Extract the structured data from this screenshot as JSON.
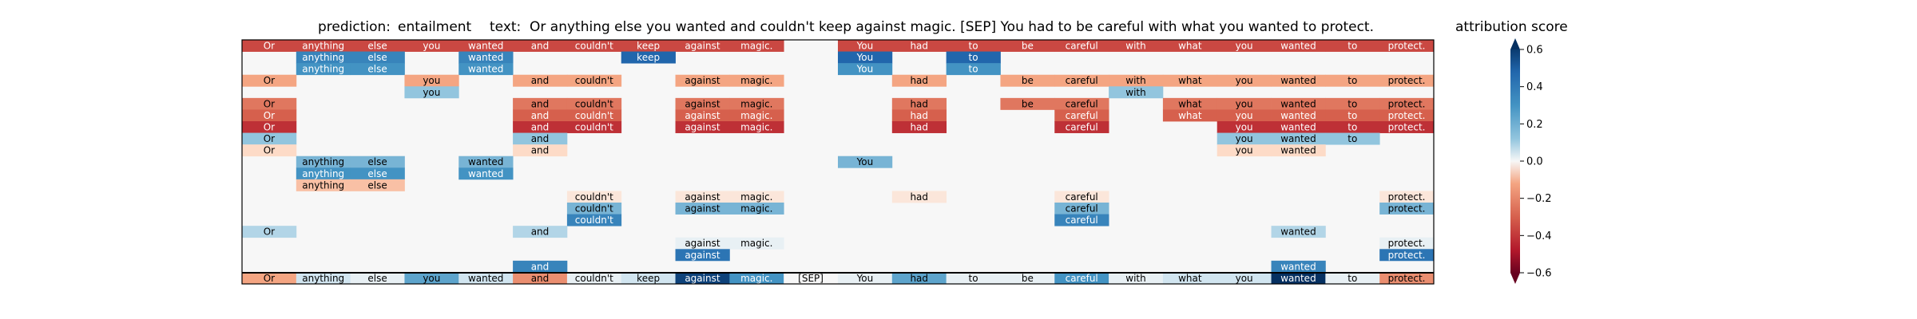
{
  "header": {
    "prediction_label": "prediction:",
    "prediction_value": "entailment",
    "text_label": "text:",
    "text_value": "Or anything else you wanted and couldn't keep against magic. [SEP] You had to be careful with what you wanted to protect."
  },
  "colorbar": {
    "title": "attribution score",
    "ticks": [
      "0.6",
      "0.4",
      "0.2",
      "0.0",
      "−0.2",
      "−0.4",
      "−0.6"
    ],
    "tick_values": [
      0.6,
      0.4,
      0.2,
      0.0,
      -0.2,
      -0.4,
      -0.6
    ],
    "range": [
      -0.6,
      0.6
    ],
    "colormap": "RdBu",
    "extend": "both"
  },
  "chart_data": {
    "type": "heatmap",
    "tokens": [
      "Or",
      "anything",
      "else",
      "you",
      "wanted",
      "and",
      "couldn't",
      "keep",
      "against",
      "magic.",
      "[SEP]",
      "You",
      "had",
      "to",
      "be",
      "careful",
      "with",
      "what",
      "you",
      "wanted",
      "to",
      "protect."
    ],
    "rows": [
      [
        -0.35,
        -0.35,
        -0.35,
        -0.35,
        -0.35,
        -0.35,
        -0.35,
        -0.35,
        -0.35,
        -0.35,
        null,
        -0.35,
        -0.35,
        -0.35,
        -0.35,
        -0.35,
        -0.35,
        -0.35,
        -0.35,
        -0.35,
        -0.35,
        -0.35
      ],
      [
        null,
        0.35,
        0.35,
        null,
        0.35,
        null,
        null,
        0.45,
        null,
        null,
        null,
        0.45,
        null,
        0.45,
        null,
        null,
        null,
        null,
        null,
        null,
        null,
        null
      ],
      [
        null,
        0.3,
        0.3,
        null,
        0.3,
        null,
        null,
        null,
        null,
        null,
        null,
        0.3,
        null,
        0.3,
        null,
        null,
        null,
        null,
        null,
        null,
        null,
        null
      ],
      [
        -0.15,
        null,
        null,
        -0.15,
        null,
        -0.15,
        -0.15,
        null,
        -0.15,
        -0.15,
        null,
        null,
        -0.15,
        null,
        -0.15,
        -0.15,
        -0.15,
        -0.15,
        -0.15,
        -0.15,
        -0.15,
        -0.15
      ],
      [
        null,
        null,
        null,
        0.15,
        null,
        null,
        null,
        null,
        null,
        null,
        null,
        null,
        null,
        null,
        null,
        null,
        0.15,
        null,
        null,
        null,
        null,
        null
      ],
      [
        -0.25,
        null,
        null,
        null,
        null,
        -0.25,
        -0.25,
        null,
        -0.25,
        -0.25,
        null,
        null,
        -0.25,
        null,
        -0.25,
        -0.25,
        null,
        -0.25,
        -0.25,
        -0.25,
        -0.25,
        -0.25
      ],
      [
        -0.3,
        null,
        null,
        null,
        null,
        -0.3,
        -0.3,
        null,
        -0.3,
        -0.3,
        null,
        null,
        -0.3,
        null,
        null,
        -0.3,
        null,
        -0.3,
        -0.3,
        -0.3,
        -0.3,
        -0.3
      ],
      [
        -0.4,
        null,
        null,
        null,
        null,
        -0.4,
        -0.4,
        null,
        -0.4,
        -0.4,
        null,
        null,
        -0.4,
        null,
        null,
        -0.4,
        null,
        null,
        -0.4,
        -0.4,
        -0.4,
        -0.4
      ],
      [
        0.15,
        null,
        null,
        null,
        null,
        0.15,
        null,
        null,
        null,
        null,
        null,
        null,
        null,
        null,
        null,
        null,
        null,
        null,
        0.15,
        0.15,
        0.15,
        null
      ],
      [
        -0.05,
        null,
        null,
        null,
        null,
        -0.05,
        null,
        null,
        null,
        null,
        null,
        null,
        null,
        null,
        null,
        null,
        null,
        null,
        -0.05,
        -0.05,
        null,
        null
      ],
      [
        null,
        0.2,
        0.2,
        null,
        0.2,
        null,
        null,
        null,
        null,
        null,
        null,
        0.2,
        null,
        null,
        null,
        null,
        null,
        null,
        null,
        null,
        null,
        null
      ],
      [
        null,
        0.3,
        0.3,
        null,
        0.3,
        null,
        null,
        null,
        null,
        null,
        null,
        null,
        null,
        null,
        null,
        null,
        null,
        null,
        null,
        null,
        null,
        null
      ],
      [
        null,
        -0.1,
        -0.1,
        null,
        null,
        null,
        null,
        null,
        null,
        null,
        null,
        null,
        null,
        null,
        null,
        null,
        null,
        null,
        null,
        null,
        null,
        null
      ],
      [
        null,
        null,
        null,
        null,
        null,
        null,
        -0.03,
        null,
        -0.03,
        -0.03,
        null,
        null,
        -0.03,
        null,
        null,
        -0.03,
        null,
        null,
        null,
        null,
        null,
        -0.03
      ],
      [
        null,
        null,
        null,
        null,
        null,
        null,
        0.2,
        null,
        0.2,
        0.2,
        null,
        null,
        null,
        null,
        null,
        0.2,
        null,
        null,
        null,
        null,
        null,
        0.2
      ],
      [
        null,
        null,
        null,
        null,
        null,
        null,
        0.35,
        null,
        null,
        null,
        null,
        null,
        null,
        null,
        null,
        0.35,
        null,
        null,
        null,
        null,
        null,
        null
      ],
      [
        0.1,
        null,
        null,
        null,
        null,
        0.1,
        null,
        null,
        null,
        null,
        null,
        null,
        null,
        null,
        null,
        null,
        null,
        null,
        null,
        0.1,
        null,
        null
      ],
      [
        null,
        null,
        null,
        null,
        null,
        null,
        null,
        null,
        0.02,
        0.02,
        null,
        null,
        null,
        null,
        null,
        null,
        null,
        null,
        null,
        null,
        null,
        0.02
      ],
      [
        null,
        null,
        null,
        null,
        null,
        null,
        null,
        null,
        0.4,
        null,
        null,
        null,
        null,
        null,
        null,
        null,
        null,
        null,
        null,
        null,
        null,
        0.4
      ],
      [
        null,
        null,
        null,
        null,
        null,
        0.35,
        null,
        null,
        null,
        null,
        null,
        null,
        null,
        null,
        null,
        null,
        null,
        null,
        null,
        0.35,
        null,
        null
      ],
      [
        -0.15,
        0.05,
        0.02,
        0.25,
        0.05,
        -0.2,
        0.02,
        0.05,
        0.55,
        0.3,
        0.0,
        0.02,
        0.25,
        0.02,
        0.02,
        0.3,
        0.02,
        0.05,
        0.05,
        0.6,
        0.02,
        -0.2
      ]
    ],
    "vmin": -0.6,
    "vmax": 0.6
  }
}
